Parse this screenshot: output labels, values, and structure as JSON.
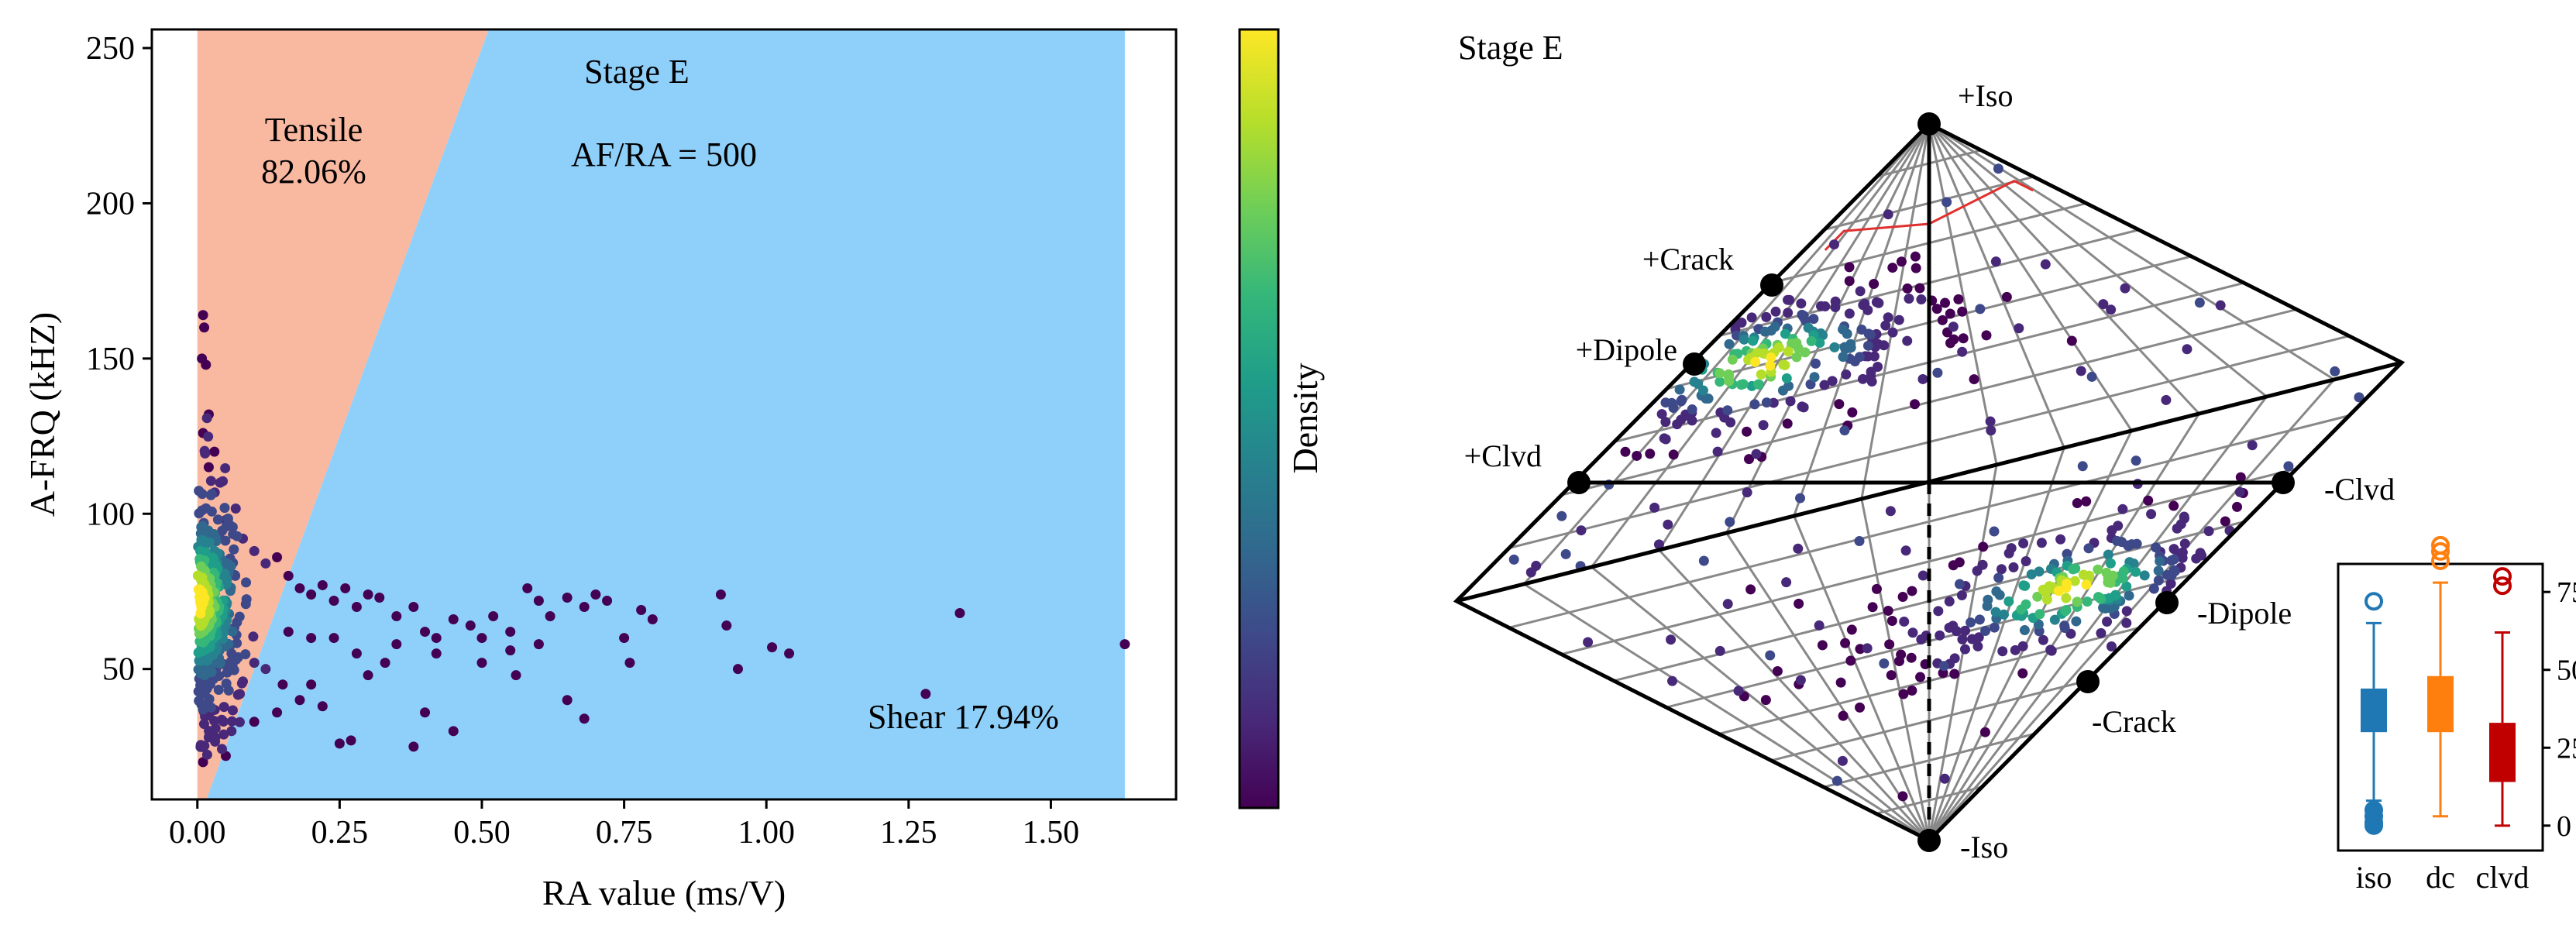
{
  "chart_data": [
    {
      "type": "scatter",
      "title": "Stage E",
      "xlabel": "RA value (ms/V)",
      "ylabel": "A-FRQ (kHZ)",
      "xlim": [
        -0.08,
        1.72
      ],
      "ylim": [
        8,
        256
      ],
      "xticks": [
        "0.00",
        "0.25",
        "0.50",
        "0.75",
        "1.00",
        "1.25",
        "1.50"
      ],
      "yticks": [
        "50",
        "100",
        "150",
        "200",
        "250"
      ],
      "grid": false,
      "regions": {
        "tensile_label": "Tensile",
        "tensile_pct": "82.06%",
        "shear_label": "Shear 17.94%",
        "ratio_label": "AF/RA = 500",
        "boundary_slope_khz_per_ms_v": 500,
        "region_x_max": 1.63,
        "tensile_color": "#f9b8a0",
        "shear_color": "#8fd0fb"
      },
      "colorbar_label": "Density",
      "colormap": [
        "#440154",
        "#482878",
        "#3e4989",
        "#31688e",
        "#26828e",
        "#1f9e89",
        "#35b779",
        "#6ece58",
        "#b5de2b",
        "#fde725"
      ],
      "outlier_points": [
        [
          0.01,
          164
        ],
        [
          0.012,
          160
        ],
        [
          0.008,
          150
        ],
        [
          0.015,
          148
        ],
        [
          0.02,
          132
        ],
        [
          0.01,
          126
        ],
        [
          0.03,
          120
        ],
        [
          0.02,
          115
        ],
        [
          0.04,
          110
        ],
        [
          0.05,
          98
        ],
        [
          0.08,
          92
        ],
        [
          0.1,
          88
        ],
        [
          0.12,
          84
        ],
        [
          0.14,
          86
        ],
        [
          0.16,
          80
        ],
        [
          0.18,
          76
        ],
        [
          0.2,
          74
        ],
        [
          0.22,
          77
        ],
        [
          0.24,
          72
        ],
        [
          0.26,
          76
        ],
        [
          0.28,
          70
        ],
        [
          0.3,
          74
        ],
        [
          0.32,
          73
        ],
        [
          0.35,
          67
        ],
        [
          0.38,
          70
        ],
        [
          0.4,
          62
        ],
        [
          0.42,
          60
        ],
        [
          0.45,
          66
        ],
        [
          0.48,
          64
        ],
        [
          0.5,
          60
        ],
        [
          0.52,
          67
        ],
        [
          0.55,
          62
        ],
        [
          0.58,
          76
        ],
        [
          0.6,
          72
        ],
        [
          0.62,
          67
        ],
        [
          0.65,
          73
        ],
        [
          0.68,
          70
        ],
        [
          0.7,
          74
        ],
        [
          0.72,
          72
        ],
        [
          0.75,
          60
        ],
        [
          0.78,
          69
        ],
        [
          0.8,
          66
        ],
        [
          0.76,
          52
        ],
        [
          0.65,
          40
        ],
        [
          0.68,
          34
        ],
        [
          0.56,
          48
        ],
        [
          0.45,
          30
        ],
        [
          0.38,
          25
        ],
        [
          0.4,
          36
        ],
        [
          0.3,
          48
        ],
        [
          0.27,
          27
        ],
        [
          0.25,
          26
        ],
        [
          0.22,
          38
        ],
        [
          0.2,
          45
        ],
        [
          0.18,
          40
        ],
        [
          0.15,
          45
        ],
        [
          0.12,
          50
        ],
        [
          0.1,
          52
        ],
        [
          0.08,
          46
        ],
        [
          0.06,
          55
        ],
        [
          0.92,
          74
        ],
        [
          0.93,
          64
        ],
        [
          0.95,
          50
        ],
        [
          1.01,
          57
        ],
        [
          1.04,
          55
        ],
        [
          1.28,
          42
        ],
        [
          1.34,
          68
        ],
        [
          1.63,
          58
        ],
        [
          0.35,
          58
        ],
        [
          0.42,
          55
        ],
        [
          0.5,
          52
        ],
        [
          0.55,
          56
        ],
        [
          0.6,
          58
        ],
        [
          0.28,
          55
        ],
        [
          0.33,
          52
        ],
        [
          0.24,
          60
        ],
        [
          0.2,
          60
        ],
        [
          0.16,
          62
        ],
        [
          0.05,
          22
        ],
        [
          0.01,
          20
        ],
        [
          0.02,
          28
        ],
        [
          0.06,
          30
        ],
        [
          0.1,
          33
        ],
        [
          0.14,
          36
        ]
      ],
      "dense_cluster": {
        "center_ra": 0.02,
        "center_frq": 68,
        "spread_ra": 0.03,
        "spread_frq": 20,
        "count": 420
      }
    },
    {
      "type": "hudson-plot",
      "title": "Stage E",
      "vertex_labels": [
        "+Iso",
        "+Crack",
        "+Dipole",
        "+Clvd",
        "-Clvd",
        "-Dipole",
        "-Crack",
        "-Iso"
      ],
      "upper_cluster": {
        "u": -0.35,
        "v": 0.45,
        "count": 260
      },
      "lower_cluster": {
        "u": 0.3,
        "v": -0.4,
        "count": 260
      },
      "scattered_points": 160
    },
    {
      "type": "box",
      "categories": [
        "iso",
        "dc",
        "clvd"
      ],
      "ylim": [
        -8,
        84
      ],
      "yticks": [
        "0",
        "25",
        "50",
        "75"
      ],
      "series": [
        {
          "name": "iso",
          "color": "#1f77b4",
          "q1": 30,
          "median": 38,
          "q3": 44,
          "whisker_low": 8,
          "whisker_high": 65,
          "outliers": [
            72,
            5,
            3,
            1,
            0
          ]
        },
        {
          "name": "dc",
          "color": "#ff7f0e",
          "q1": 30,
          "median": 40,
          "q3": 48,
          "whisker_low": 3,
          "whisker_high": 78,
          "outliers": [
            85,
            88,
            90
          ]
        },
        {
          "name": "clvd",
          "color": "#c00000",
          "q1": 14,
          "median": 22,
          "q3": 33,
          "whisker_low": 0,
          "whisker_high": 62,
          "outliers": [
            77,
            80
          ]
        }
      ]
    }
  ]
}
